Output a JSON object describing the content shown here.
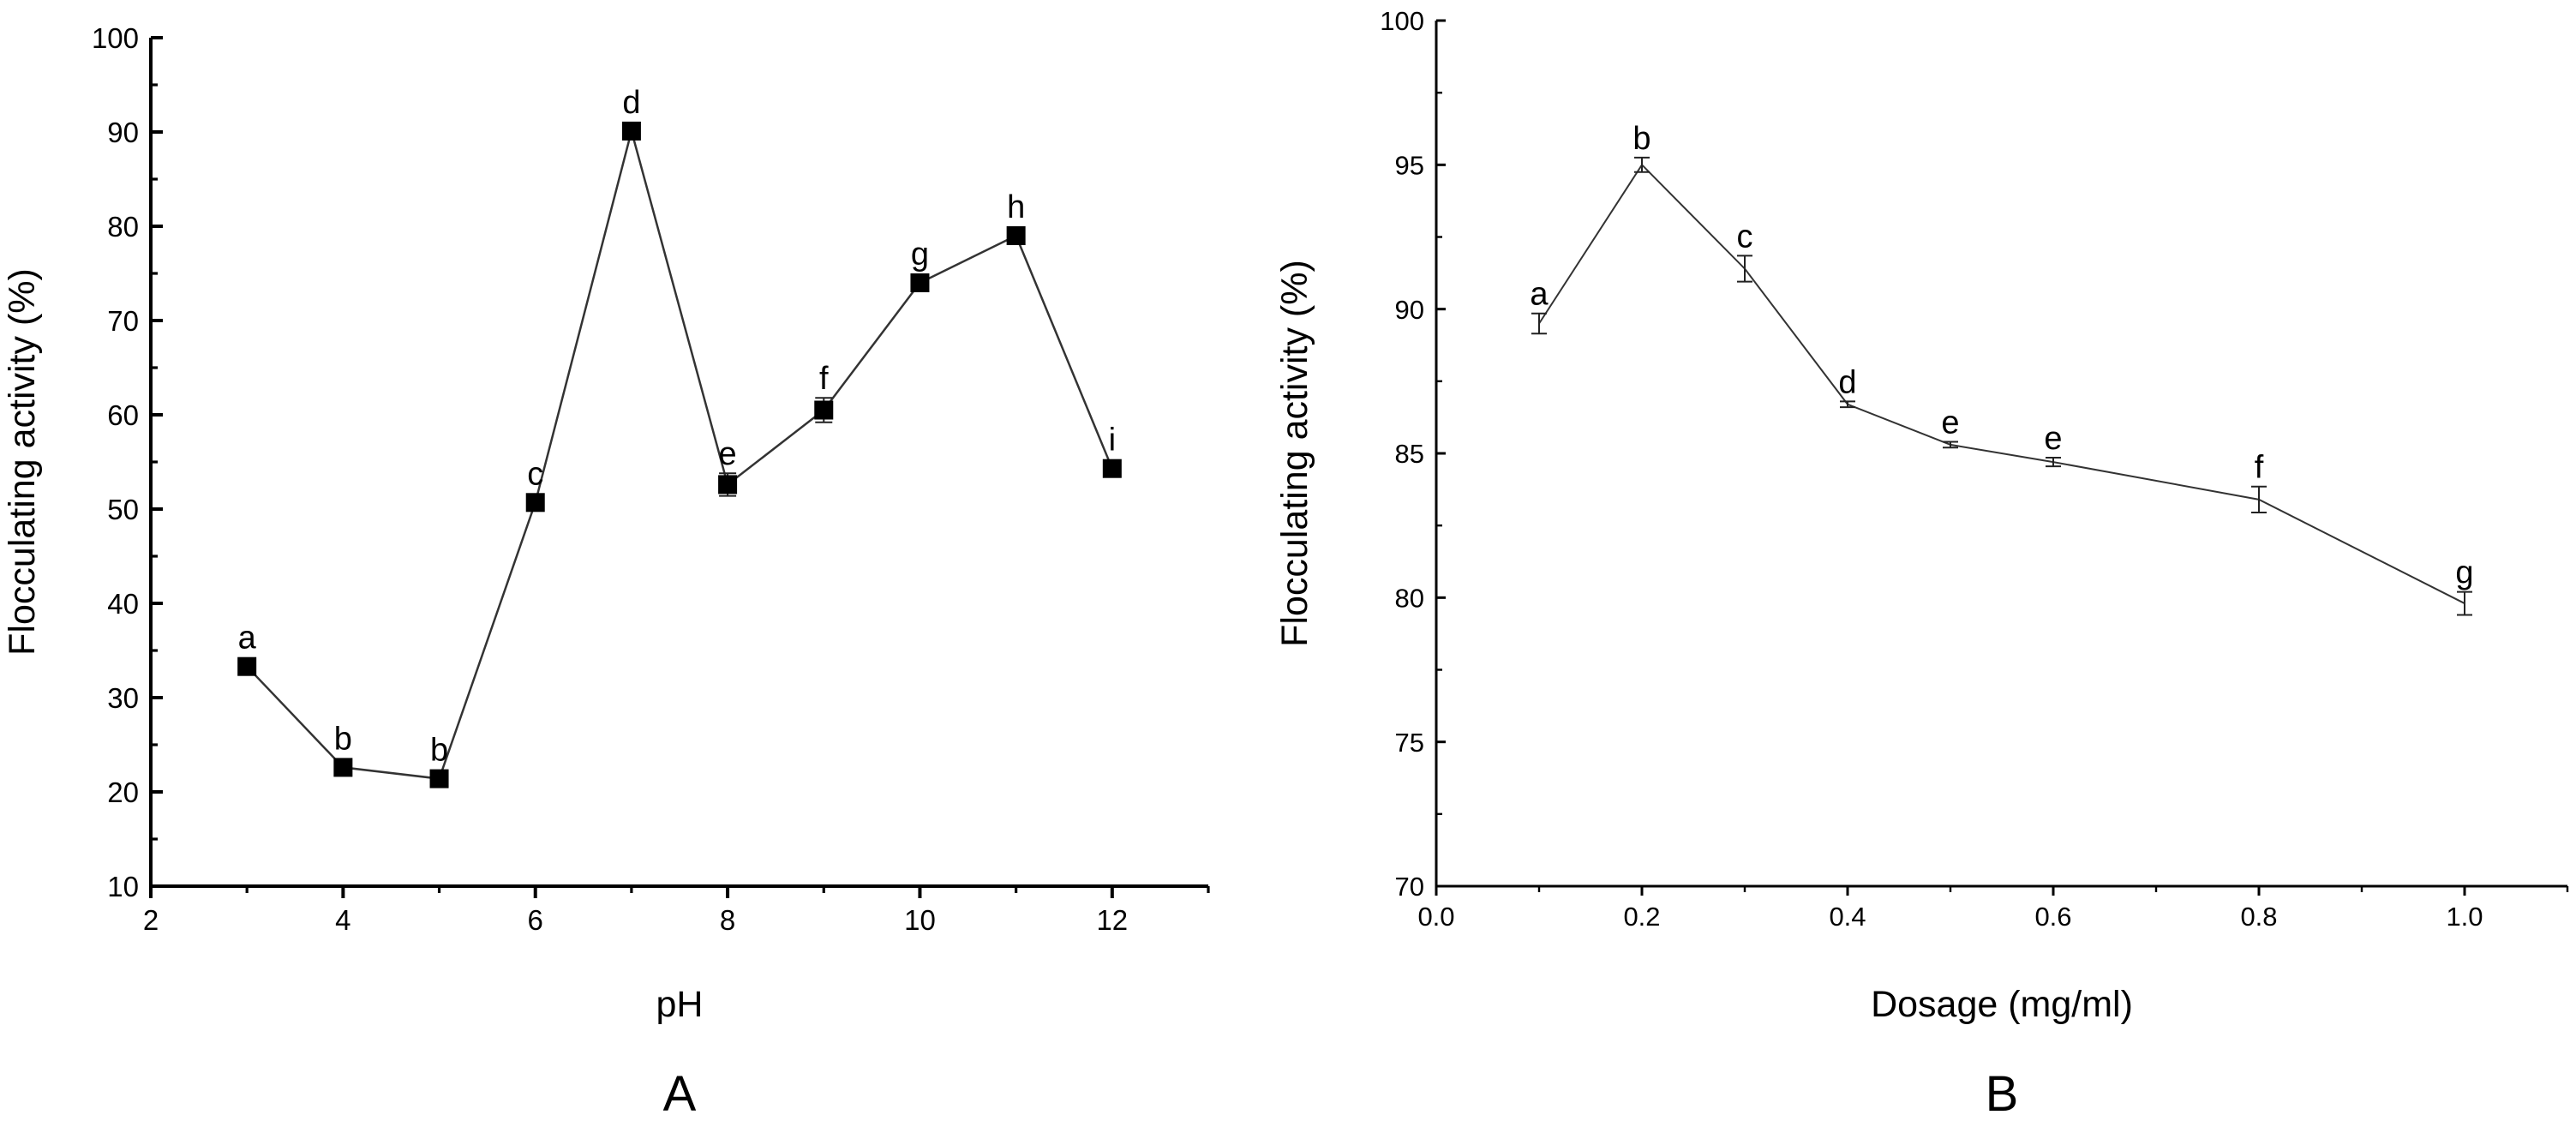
{
  "chart_data": [
    {
      "type": "line",
      "panel_label": "A",
      "xlabel": "pH",
      "ylabel": "Flocculating activity (%)",
      "xlim": [
        2,
        13
      ],
      "ylim": [
        10,
        100
      ],
      "xticks": [
        "2",
        "4",
        "6",
        "8",
        "10",
        "12"
      ],
      "yticks": [
        "10",
        "20",
        "30",
        "40",
        "50",
        "60",
        "70",
        "80",
        "90",
        "100"
      ],
      "marker": "filled-square",
      "grid": false,
      "x": [
        3,
        4,
        5,
        6,
        7,
        8,
        9,
        10,
        11,
        12
      ],
      "series": [
        {
          "values": [
            33.3,
            22.6,
            21.4,
            50.7,
            90.1,
            52.6,
            60.5,
            74.0,
            79.0,
            54.3
          ],
          "errors": [
            0.8,
            0.6,
            0.5,
            0.6,
            0.5,
            1.2,
            1.3,
            0.6,
            0.5,
            0.6
          ],
          "labels": [
            "a",
            "b",
            "b",
            "c",
            "d",
            "e",
            "f",
            "g",
            "h",
            "i"
          ]
        }
      ]
    },
    {
      "type": "line",
      "panel_label": "B",
      "xlabel": "Dosage (mg/ml)",
      "ylabel": "Flocculating activity (%)",
      "xlim": [
        0,
        1.1
      ],
      "ylim": [
        70,
        100
      ],
      "xticks": [
        "0.0",
        "0.2",
        "0.4",
        "0.6",
        "0.8",
        "1.0"
      ],
      "yticks": [
        "70",
        "75",
        "80",
        "85",
        "90",
        "95",
        "100"
      ],
      "marker": "none",
      "grid": false,
      "x": [
        0.1,
        0.2,
        0.3,
        0.4,
        0.5,
        0.6,
        0.8,
        1.0
      ],
      "series": [
        {
          "values": [
            89.5,
            95.0,
            91.4,
            86.7,
            85.3,
            84.7,
            83.4,
            79.8
          ],
          "errors": [
            0.35,
            0.25,
            0.45,
            0.1,
            0.1,
            0.15,
            0.45,
            0.4
          ],
          "labels": [
            "a",
            "b",
            "c",
            "d",
            "e",
            "e",
            "f",
            "g"
          ]
        }
      ]
    }
  ]
}
